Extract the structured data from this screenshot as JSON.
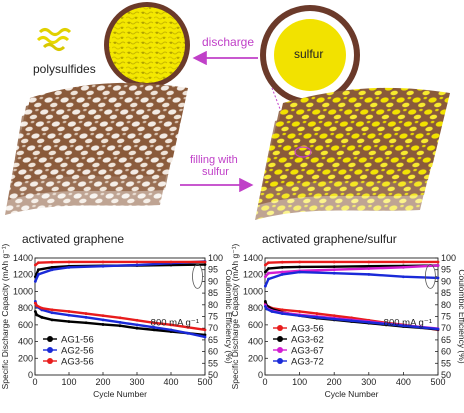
{
  "schematic": {
    "polysulfides_label": "polysulfides",
    "sulfur_label": "sulfur",
    "discharge_label": "discharge",
    "filling_label_line1": "filling with",
    "filling_label_line2": "sulfur",
    "left_caption": "activated graphene",
    "right_caption": "activated graphene/sulfur",
    "colors": {
      "graphene_brown": "#8a5a3a",
      "sulfur_yellow": "#f2e200",
      "ring_brown": "#6b3a2a",
      "arrow_magenta": "#c040c8"
    }
  },
  "chart_data": [
    {
      "type": "line",
      "panel": "left",
      "xlabel": "Cycle Number",
      "ylabel": "Specific Discharge Capacity (mAh g⁻¹)",
      "y2label": "Coulombic Efficiency (%)",
      "xlim": [
        0,
        500
      ],
      "ylim": [
        0,
        1400
      ],
      "y2lim": [
        50,
        100
      ],
      "xticks": [
        0,
        100,
        200,
        300,
        400,
        500
      ],
      "yticks": [
        0,
        200,
        400,
        600,
        800,
        1000,
        1200,
        1400
      ],
      "y2ticks": [
        50,
        55,
        60,
        65,
        70,
        75,
        80,
        85,
        90,
        95,
        100
      ],
      "annotation": "800 mA g⁻¹",
      "legend_position": "bottom-left",
      "series": [
        {
          "name": "AG1-56",
          "color": "#000000",
          "marker": "circle",
          "capacity": {
            "x": [
              1,
              5,
              20,
              50,
              100,
              150,
              200,
              250,
              300,
              350,
              400,
              450,
              500
            ],
            "y": [
              760,
              720,
              690,
              660,
              640,
              625,
              605,
              590,
              560,
              540,
              520,
              500,
              480
            ]
          },
          "efficiency": {
            "x": [
              1,
              10,
              50,
              100,
              200,
              300,
              400,
              500
            ],
            "y": [
              92,
              95,
              96,
              96.5,
              96.7,
              96.8,
              97,
              97.2
            ]
          }
        },
        {
          "name": "AG2-56",
          "color": "#1a2ad8",
          "marker": "circle",
          "capacity": {
            "x": [
              1,
              5,
              20,
              50,
              100,
              150,
              200,
              250,
              300,
              350,
              400,
              450,
              500
            ],
            "y": [
              880,
              820,
              780,
              745,
              715,
              690,
              660,
              630,
              600,
              570,
              540,
              500,
              455
            ]
          },
          "efficiency": {
            "x": [
              1,
              10,
              50,
              100,
              200,
              300,
              400,
              500
            ],
            "y": [
              90,
              93,
              95,
              96,
              96.5,
              97,
              97.8,
              98.5
            ]
          }
        },
        {
          "name": "AG3-56",
          "color": "#e81c1c",
          "marker": "circle",
          "capacity": {
            "x": [
              1,
              5,
              20,
              50,
              100,
              150,
              200,
              250,
              300,
              350,
              400,
              450,
              500
            ],
            "y": [
              860,
              830,
              800,
              780,
              760,
              735,
              710,
              685,
              655,
              625,
              600,
              570,
              540
            ]
          },
          "efficiency": {
            "x": [
              1,
              10,
              50,
              100,
              200,
              300,
              400,
              500
            ],
            "y": [
              97,
              98,
              98.2,
              98.3,
              98.3,
              98.3,
              98.3,
              98.3
            ]
          }
        }
      ]
    },
    {
      "type": "line",
      "panel": "right",
      "xlabel": "Cycle Number",
      "ylabel": "Specific Discharge Capacity (mAh g⁻¹)",
      "y2label": "Coulombic Efficiency (%)",
      "xlim": [
        0,
        500
      ],
      "ylim": [
        0,
        1400
      ],
      "y2lim": [
        50,
        100
      ],
      "xticks": [
        0,
        100,
        200,
        300,
        400,
        500
      ],
      "yticks": [
        0,
        200,
        400,
        600,
        800,
        1000,
        1200,
        1400
      ],
      "y2ticks": [
        50,
        55,
        60,
        65,
        70,
        75,
        80,
        85,
        90,
        95,
        100
      ],
      "annotation": "800 mA g⁻¹",
      "legend_position": "bottom-left",
      "series": [
        {
          "name": "AG3-56",
          "color": "#e81c1c",
          "marker": "circle",
          "capacity": {
            "x": [
              1,
              5,
              20,
              50,
              100,
              150,
              200,
              250,
              300,
              350,
              400,
              450,
              500
            ],
            "y": [
              860,
              830,
              800,
              780,
              760,
              735,
              710,
              685,
              655,
              625,
              600,
              570,
              540
            ]
          },
          "efficiency": {
            "x": [
              1,
              10,
              50,
              100,
              200,
              300,
              400,
              500
            ],
            "y": [
              97,
              98,
              98.2,
              98.3,
              98.3,
              98.3,
              98.3,
              98.3
            ]
          }
        },
        {
          "name": "AG3-62",
          "color": "#000000",
          "marker": "circle",
          "capacity": {
            "x": [
              1,
              5,
              20,
              50,
              100,
              150,
              200,
              250,
              300,
              350,
              400,
              450,
              500
            ],
            "y": [
              880,
              830,
              790,
              750,
              710,
              680,
              660,
              640,
              620,
              600,
              580,
              565,
              545
            ]
          },
          "efficiency": {
            "x": [
              1,
              10,
              50,
              100,
              200,
              300,
              400,
              500
            ],
            "y": [
              94,
              95.5,
              96,
              96.2,
              96.3,
              96.5,
              96.6,
              96.8
            ]
          }
        },
        {
          "name": "AG3-67",
          "color": "#d21ed2",
          "marker": "circle",
          "capacity": {
            "x": [
              1,
              5,
              20,
              50,
              100,
              150,
              200,
              250,
              300,
              350,
              400,
              450,
              500
            ],
            "y": [
              840,
              800,
              770,
              745,
              720,
              700,
              680,
              660,
              640,
              615,
              595,
              575,
              555
            ]
          },
          "efficiency": {
            "x": [
              1,
              10,
              50,
              100,
              200,
              300,
              400,
              500
            ],
            "y": [
              92,
              93.5,
              94,
              94.5,
              95,
              95.5,
              96,
              96.8
            ]
          }
        },
        {
          "name": "AG3-72",
          "color": "#1a2ad8",
          "marker": "circle",
          "capacity": {
            "x": [
              1,
              5,
              20,
              50,
              100,
              150,
              200,
              250,
              300,
              350,
              400,
              450,
              500
            ],
            "y": [
              820,
              790,
              760,
              735,
              710,
              690,
              670,
              650,
              630,
              610,
              590,
              570,
              550
            ]
          },
          "efficiency": {
            "x": [
              1,
              10,
              50,
              100,
              200,
              300,
              400,
              500
            ],
            "y": [
              88,
              91,
              93,
              94,
              93.5,
              93,
              92,
              91.5
            ]
          }
        }
      ]
    }
  ]
}
